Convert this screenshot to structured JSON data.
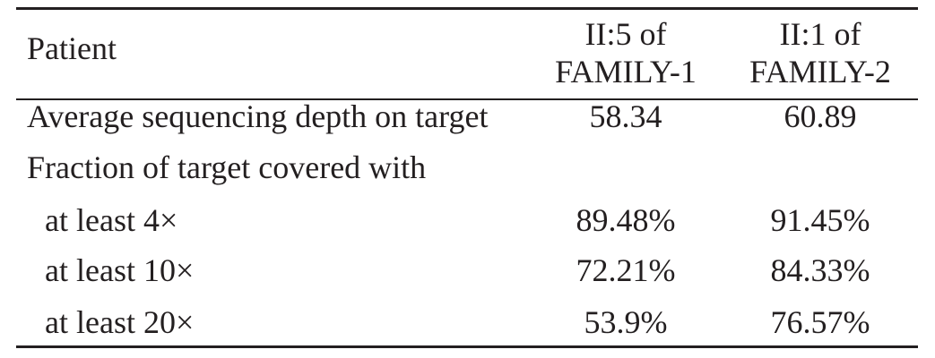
{
  "table": {
    "header": {
      "label": "Patient",
      "col1": [
        "II:5 of",
        "FAMILY-1"
      ],
      "col2": [
        "II:1 of",
        "FAMILY-2"
      ]
    },
    "rows": [
      {
        "label": "Average sequencing depth on target",
        "col1": "58.34",
        "col2": "60.89"
      },
      {
        "label": "Fraction of target covered with",
        "col1": "",
        "col2": ""
      },
      {
        "label": "at least 4×",
        "col1": "89.48%",
        "col2": "91.45%"
      },
      {
        "label": "at least 10×",
        "col1": "72.21%",
        "col2": "84.33%"
      },
      {
        "label": "at least 20×",
        "col1": "53.9%",
        "col2": "76.57%"
      }
    ]
  }
}
